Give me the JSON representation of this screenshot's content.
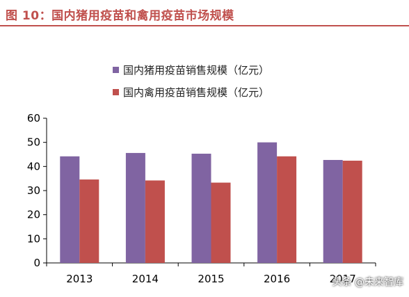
{
  "header": {
    "title": "图 10：国内猪用疫苗和禽用疫苗市场规模"
  },
  "watermark": "头条 @未来智库",
  "chart_data": {
    "type": "bar",
    "categories": [
      "2013",
      "2014",
      "2015",
      "2016",
      "2017"
    ],
    "series": [
      {
        "name": "国内猪用疫苗销售规模（亿元）",
        "color": "#8064a2",
        "values": [
          44.2,
          45.6,
          45.3,
          50.0,
          42.7
        ]
      },
      {
        "name": "国内禽用疫苗销售规模（亿元）",
        "color": "#c0504d",
        "values": [
          34.6,
          34.2,
          33.3,
          44.2,
          42.4
        ]
      }
    ],
    "ylim": [
      0,
      60
    ],
    "yticks": [
      "0",
      "10",
      "20",
      "30",
      "40",
      "50",
      "60"
    ],
    "xlabel": "",
    "ylabel": "",
    "legend_position": "top",
    "grid": false
  }
}
